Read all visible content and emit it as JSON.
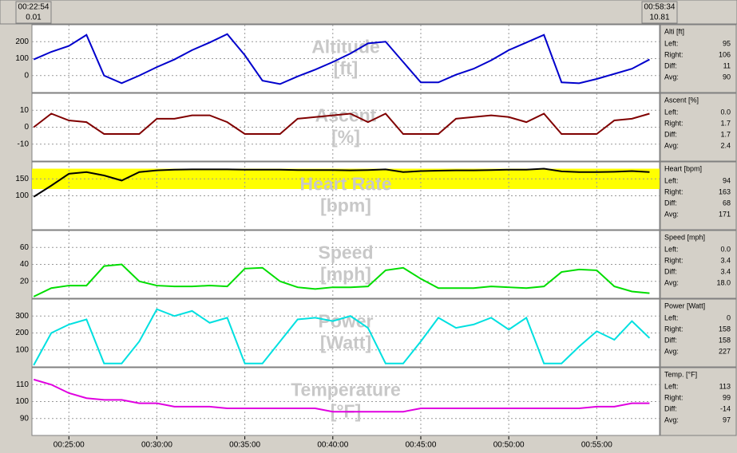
{
  "top_bar": {
    "left": {
      "time": "00:22:54",
      "distance": "0.01"
    },
    "right": {
      "time": "00:58:34",
      "distance": "10.81"
    }
  },
  "x": [
    23,
    24,
    25,
    26,
    27,
    28,
    29,
    30,
    31,
    32,
    33,
    34,
    35,
    36,
    37,
    38,
    39,
    40,
    41,
    42,
    43,
    44,
    45,
    46,
    47,
    48,
    49,
    50,
    51,
    52,
    53,
    54,
    55,
    56,
    57,
    58
  ],
  "xlim": [
    22.9,
    58.57
  ],
  "xticks": [
    {
      "value": 25,
      "label": "00:25:00"
    },
    {
      "value": 30,
      "label": "00:30:00"
    },
    {
      "value": 35,
      "label": "00:35:00"
    },
    {
      "value": 40,
      "label": "00:40:00"
    },
    {
      "value": 45,
      "label": "00:45:00"
    },
    {
      "value": 50,
      "label": "00:50:00"
    },
    {
      "value": 55,
      "label": "00:55:00"
    }
  ],
  "chart_data": [
    {
      "type": "line",
      "title": "Altitude",
      "unit": "[ft]",
      "color": "#0000cc",
      "grid": true,
      "ylim": [
        -100,
        300
      ],
      "yticks": [
        0,
        100,
        200
      ],
      "values": [
        95,
        140,
        175,
        240,
        0,
        -45,
        0,
        50,
        95,
        150,
        195,
        245,
        120,
        -30,
        -50,
        -5,
        35,
        80,
        130,
        190,
        200,
        80,
        -40,
        -40,
        5,
        40,
        90,
        150,
        195,
        240,
        -40,
        -45,
        -20,
        10,
        40,
        95
      ],
      "stats": {
        "header": "Alti [ft]",
        "rows": [
          {
            "label": "Left:",
            "value": "95"
          },
          {
            "label": "Right:",
            "value": "106"
          },
          {
            "label": "Diff:",
            "value": "11"
          },
          {
            "label": "Avg:",
            "value": "90"
          }
        ]
      }
    },
    {
      "type": "line",
      "title": "Ascent",
      "unit": "[%]",
      "color": "#800000",
      "grid": true,
      "ylim": [
        -20,
        20
      ],
      "yticks": [
        -10,
        0,
        10
      ],
      "values": [
        0,
        8,
        4,
        3,
        -4,
        -4,
        -4,
        5,
        5,
        7,
        7,
        3,
        -4,
        -4,
        -4,
        5,
        6,
        7,
        8,
        3,
        8,
        -4,
        -4,
        -4,
        5,
        6,
        7,
        6,
        3,
        8,
        -4,
        -4,
        -4,
        4,
        5,
        8
      ],
      "stats": {
        "header": "Ascent [%]",
        "rows": [
          {
            "label": "Left:",
            "value": "0.0"
          },
          {
            "label": "Right:",
            "value": "1.7"
          },
          {
            "label": "Diff:",
            "value": "1.7"
          },
          {
            "label": "Avg:",
            "value": "2.4"
          }
        ]
      }
    },
    {
      "type": "line",
      "title": "Heart Rate",
      "unit": "[bpm]",
      "color": "#000000",
      "grid": true,
      "ylim": [
        0,
        200
      ],
      "yticks": [
        100,
        150
      ],
      "zone": [
        120,
        180
      ],
      "zone_color": "#ffff00",
      "values": [
        97,
        130,
        165,
        170,
        160,
        145,
        170,
        175,
        177,
        178,
        178,
        178,
        177,
        177,
        177,
        176,
        176,
        176,
        175,
        176,
        178,
        170,
        173,
        174,
        175,
        175,
        176,
        177,
        177,
        180,
        172,
        170,
        170,
        171,
        173,
        170
      ],
      "stats": {
        "header": "Heart [bpm]",
        "rows": [
          {
            "label": "Left:",
            "value": "94"
          },
          {
            "label": "Right:",
            "value": "163"
          },
          {
            "label": "Diff:",
            "value": "68"
          },
          {
            "label": "Avg:",
            "value": "171"
          }
        ]
      }
    },
    {
      "type": "line",
      "title": "Speed",
      "unit": "[mph]",
      "color": "#00dd00",
      "grid": true,
      "ylim": [
        0,
        80
      ],
      "yticks": [
        20,
        40,
        60
      ],
      "values": [
        2,
        12,
        15,
        15,
        38,
        40,
        20,
        15,
        14,
        14,
        15,
        14,
        35,
        36,
        20,
        13,
        11,
        13,
        13,
        14,
        33,
        36,
        23,
        12,
        12,
        12,
        14,
        13,
        12,
        14,
        31,
        34,
        33,
        14,
        8,
        6
      ],
      "stats": {
        "header": "Speed [mph]",
        "rows": [
          {
            "label": "Left:",
            "value": "0.0"
          },
          {
            "label": "Right:",
            "value": "3.4"
          },
          {
            "label": "Diff:",
            "value": "3.4"
          },
          {
            "label": "Avg:",
            "value": "18.0"
          }
        ]
      }
    },
    {
      "type": "line",
      "title": "Power",
      "unit": "[Watt]",
      "color": "#00e0e0",
      "grid": true,
      "ylim": [
        0,
        400
      ],
      "yticks": [
        100,
        200,
        300
      ],
      "values": [
        10,
        200,
        250,
        280,
        20,
        20,
        150,
        340,
        300,
        330,
        260,
        290,
        20,
        20,
        150,
        280,
        290,
        270,
        300,
        230,
        20,
        20,
        150,
        290,
        230,
        250,
        290,
        220,
        290,
        20,
        20,
        120,
        210,
        160,
        270,
        170
      ],
      "stats": {
        "header": "Power [Watt]",
        "rows": [
          {
            "label": "Left:",
            "value": "0"
          },
          {
            "label": "Right:",
            "value": "158"
          },
          {
            "label": "Diff:",
            "value": "158"
          },
          {
            "label": "Avg:",
            "value": "227"
          }
        ]
      }
    },
    {
      "type": "line",
      "title": "Temperature",
      "unit": "[°F]",
      "color": "#e000e0",
      "grid": true,
      "ylim": [
        80,
        120
      ],
      "yticks": [
        90,
        100,
        110
      ],
      "values": [
        113,
        110,
        105,
        102,
        101,
        101,
        99,
        99,
        97,
        97,
        97,
        96,
        96,
        96,
        96,
        96,
        96,
        94,
        94,
        94,
        94,
        94,
        96,
        96,
        96,
        96,
        96,
        96,
        96,
        96,
        96,
        96,
        97,
        97,
        99,
        99
      ],
      "stats": {
        "header": "Temp. [°F]",
        "rows": [
          {
            "label": "Left:",
            "value": "113"
          },
          {
            "label": "Right:",
            "value": "99"
          },
          {
            "label": "Diff:",
            "value": "-14"
          },
          {
            "label": "Avg:",
            "value": "97"
          }
        ]
      }
    }
  ]
}
